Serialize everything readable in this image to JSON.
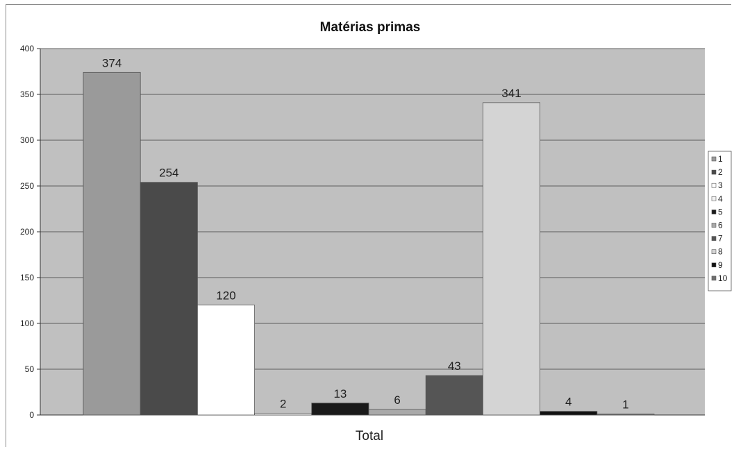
{
  "chart_data": {
    "type": "bar",
    "title": "Matérias primas",
    "categories": [
      "Total"
    ],
    "series": [
      {
        "name": "1",
        "values": [
          374
        ],
        "color": "#9a9a9a"
      },
      {
        "name": "2",
        "values": [
          254
        ],
        "color": "#4a4a4a"
      },
      {
        "name": "3",
        "values": [
          120
        ],
        "color": "#ffffff"
      },
      {
        "name": "4",
        "values": [
          2
        ],
        "color": "#f2f2f2"
      },
      {
        "name": "5",
        "values": [
          13
        ],
        "color": "#1a1a1a"
      },
      {
        "name": "6",
        "values": [
          6
        ],
        "color": "#a9a9a9"
      },
      {
        "name": "7",
        "values": [
          43
        ],
        "color": "#555555"
      },
      {
        "name": "8",
        "values": [
          341
        ],
        "color": "#d4d4d4"
      },
      {
        "name": "9",
        "values": [
          4
        ],
        "color": "#111111"
      },
      {
        "name": "10",
        "values": [
          1
        ],
        "color": "#6f6f6f"
      }
    ],
    "ylim": [
      0,
      400
    ],
    "yticks": [
      0,
      50,
      100,
      150,
      200,
      250,
      300,
      350,
      400
    ],
    "grid": true,
    "plot_background": "#c0c0c0",
    "legend_position": "right"
  }
}
